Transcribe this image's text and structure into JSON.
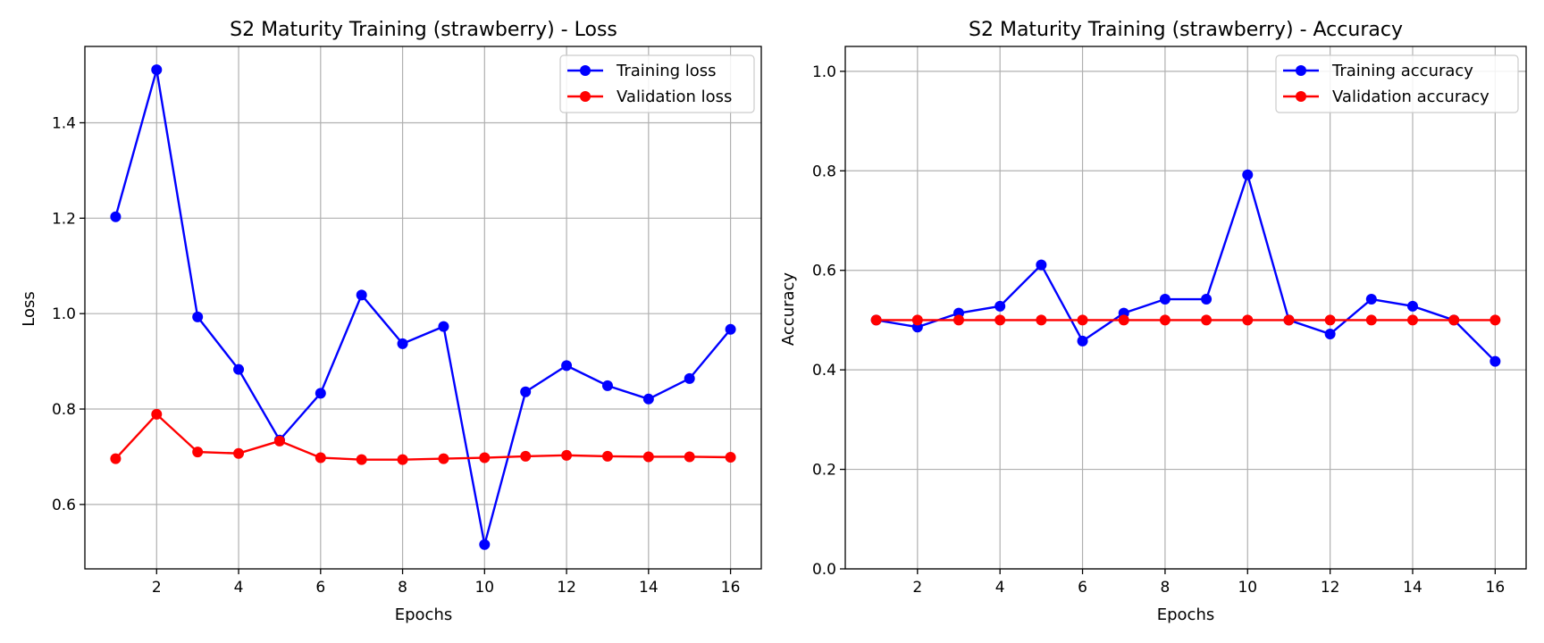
{
  "colors": {
    "training": "#0000ff",
    "validation": "#ff0000",
    "grid": "#b0b0b0",
    "axis": "#000000"
  },
  "chart_data": [
    {
      "type": "line",
      "title": "S2 Maturity Training (strawberry) - Loss",
      "xlabel": "Epochs",
      "ylabel": "Loss",
      "xlim": [
        0.25,
        16.75
      ],
      "ylim": [
        0.465,
        1.56
      ],
      "xticks": [
        2,
        4,
        6,
        8,
        10,
        12,
        14,
        16
      ],
      "yticks": [
        0.6,
        0.8,
        1.0,
        1.2,
        1.4
      ],
      "ytick_labels": [
        "0.6",
        "0.8",
        "1.0",
        "1.2",
        "1.4"
      ],
      "grid": true,
      "legend_position": "top-right",
      "x": [
        1,
        2,
        3,
        4,
        5,
        6,
        7,
        8,
        9,
        10,
        11,
        12,
        13,
        14,
        15,
        16
      ],
      "series": [
        {
          "name": "Training loss",
          "color": "#0000ff",
          "values": [
            1.203,
            1.511,
            0.993,
            0.883,
            0.735,
            0.833,
            1.039,
            0.937,
            0.973,
            0.516,
            0.836,
            0.891,
            0.849,
            0.821,
            0.864,
            0.967
          ]
        },
        {
          "name": "Validation loss",
          "color": "#ff0000",
          "values": [
            0.696,
            0.789,
            0.71,
            0.707,
            0.733,
            0.698,
            0.694,
            0.694,
            0.696,
            0.698,
            0.701,
            0.703,
            0.701,
            0.7,
            0.7,
            0.699
          ]
        }
      ]
    },
    {
      "type": "line",
      "title": "S2 Maturity Training (strawberry) - Accuracy",
      "xlabel": "Epochs",
      "ylabel": "Accuracy",
      "xlim": [
        0.25,
        16.75
      ],
      "ylim": [
        0.0,
        1.05
      ],
      "xticks": [
        2,
        4,
        6,
        8,
        10,
        12,
        14,
        16
      ],
      "yticks": [
        0.0,
        0.2,
        0.4,
        0.6,
        0.8,
        1.0
      ],
      "ytick_labels": [
        "0.0",
        "0.2",
        "0.4",
        "0.6",
        "0.8",
        "1.0"
      ],
      "grid": true,
      "legend_position": "top-right",
      "x": [
        1,
        2,
        3,
        4,
        5,
        6,
        7,
        8,
        9,
        10,
        11,
        12,
        13,
        14,
        15,
        16
      ],
      "series": [
        {
          "name": "Training accuracy",
          "color": "#0000ff",
          "values": [
            0.5,
            0.486,
            0.514,
            0.528,
            0.611,
            0.458,
            0.514,
            0.542,
            0.542,
            0.792,
            0.5,
            0.472,
            0.542,
            0.528,
            0.5,
            0.417
          ]
        },
        {
          "name": "Validation accuracy",
          "color": "#ff0000",
          "values": [
            0.5,
            0.5,
            0.5,
            0.5,
            0.5,
            0.5,
            0.5,
            0.5,
            0.5,
            0.5,
            0.5,
            0.5,
            0.5,
            0.5,
            0.5,
            0.5
          ]
        }
      ]
    }
  ]
}
